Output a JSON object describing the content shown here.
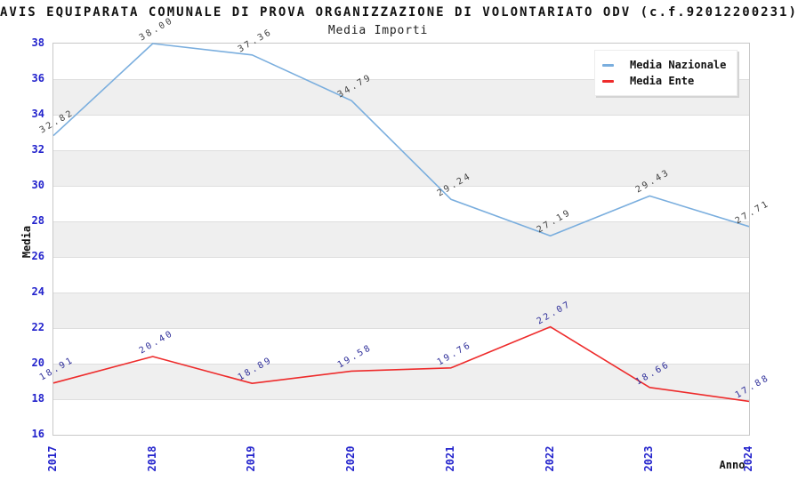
{
  "header": {
    "title": "AVIS EQUIPARATA COMUNALE DI PROVA ORGANIZZAZIONE DI VOLONTARIATO ODV (c.f.92012200231)",
    "subtitle": "Media Importi"
  },
  "legend": {
    "items": [
      {
        "label": "Media Nazionale",
        "color": "#7aaede"
      },
      {
        "label": "Media Ente",
        "color": "#ee2b2b"
      }
    ]
  },
  "axes": {
    "y_title": "Media",
    "x_title": "Anno",
    "tick_label_color": "#2222cc"
  },
  "chart_data": {
    "type": "line",
    "title": "AVIS EQUIPARATA COMUNALE DI PROVA ORGANIZZAZIONE DI VOLONTARIATO ODV (c.f.92012200231)",
    "subtitle": "Media Importi",
    "xlabel": "Anno",
    "ylabel": "Media",
    "categories": [
      "2017",
      "2018",
      "2019",
      "2020",
      "2021",
      "2022",
      "2023",
      "2024"
    ],
    "series": [
      {
        "name": "Media Nazionale",
        "color": "#7aaede",
        "label_color": "#3f3f3f",
        "values": [
          32.82,
          38.0,
          37.36,
          34.79,
          29.24,
          27.19,
          29.43,
          27.71
        ]
      },
      {
        "name": "Media Ente",
        "color": "#ee2b2b",
        "label_color": "#2d2d99",
        "values": [
          18.91,
          20.4,
          18.89,
          19.58,
          19.76,
          22.07,
          18.66,
          17.88
        ]
      }
    ],
    "ylim": [
      16,
      38
    ],
    "y_tick_step": 2,
    "y_ticks": [
      38,
      36,
      34,
      32,
      30,
      28,
      26,
      24,
      22,
      20,
      18,
      16
    ],
    "value_label_decimals": 2,
    "grid": "alternating-horizontal-bands",
    "band_color": "#efefef",
    "gridline_color": "#dedede",
    "plot_border_color": "#c8c8c8",
    "legend_position": "top-right"
  }
}
